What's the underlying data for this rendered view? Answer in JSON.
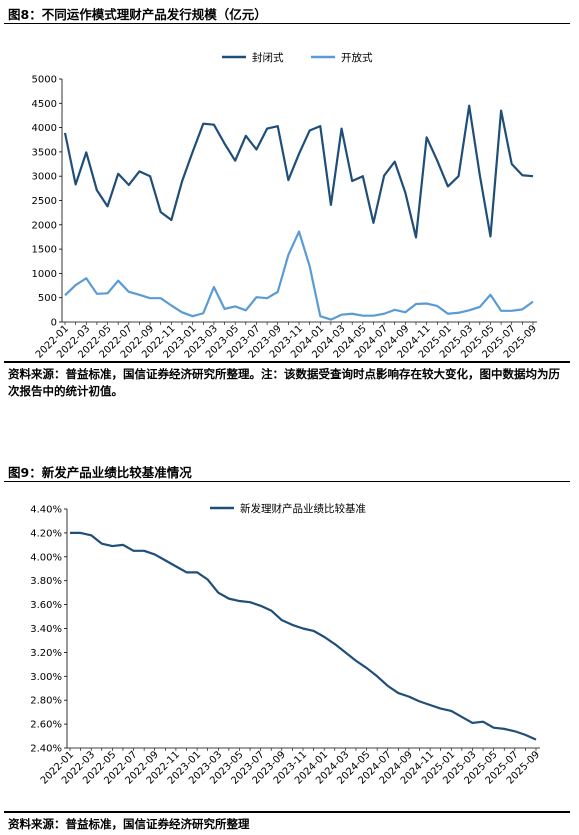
{
  "figures": [
    {
      "title": "图8：不同运作模式理财产品发行规模（亿元）",
      "source": "资料来源：普益标准，国信证券经济研究所整理。注：该数据受查询时点影响存在较大变化，图中数据均为历次报告中的统计初值。"
    },
    {
      "title": "图9：新发产品业绩比较基准情况",
      "source": "资料来源：普益标准，国信证券经济研究所整理"
    }
  ],
  "chart_data": [
    {
      "type": "line",
      "title": "",
      "xlabel": "",
      "ylabel": "",
      "ylim": [
        0,
        5000
      ],
      "yticks": [
        "0",
        "500",
        "1000",
        "1500",
        "2000",
        "2500",
        "3000",
        "3500",
        "4000",
        "4500",
        "5000"
      ],
      "x": [
        "2022-01",
        "2022-02",
        "2022-03",
        "2022-04",
        "2022-05",
        "2022-06",
        "2022-07",
        "2022-08",
        "2022-09",
        "2022-10",
        "2022-11",
        "2022-12",
        "2023-01",
        "2023-02",
        "2023-03",
        "2023-04",
        "2023-05",
        "2023-06",
        "2023-07",
        "2023-08",
        "2023-09",
        "2023-10",
        "2023-11",
        "2023-12",
        "2024-01",
        "2024-02",
        "2024-03",
        "2024-04",
        "2024-05",
        "2024-06",
        "2024-07",
        "2024-08",
        "2024-09",
        "2024-10",
        "2024-11",
        "2024-12",
        "2025-01",
        "2025-02",
        "2025-03",
        "2025-04",
        "2025-05",
        "2025-06",
        "2025-07",
        "2025-08",
        "2025-09"
      ],
      "xticks": [
        "2022-01",
        "2022-03",
        "2022-05",
        "2022-07",
        "2022-09",
        "2022-11",
        "2023-01",
        "2023-03",
        "2023-05",
        "2023-07",
        "2023-09",
        "2023-11",
        "2024-01",
        "2024-03",
        "2024-05",
        "2024-07",
        "2024-09",
        "2024-11",
        "2025-01",
        "2025-03",
        "2025-05",
        "2025-07",
        "2025-09"
      ],
      "legend_position": "top-center",
      "grid": false,
      "series": [
        {
          "name": "封闭式",
          "color": "#1f4e79",
          "values": [
            3890,
            2830,
            3490,
            2710,
            2380,
            3050,
            2820,
            3100,
            3000,
            2260,
            2100,
            2890,
            3500,
            4080,
            4060,
            3670,
            3320,
            3830,
            3550,
            3980,
            4030,
            2920,
            3460,
            3940,
            4030,
            2410,
            3980,
            2900,
            3000,
            2040,
            3010,
            3300,
            2660,
            1740,
            3800,
            3320,
            2790,
            3000,
            4450,
            3020,
            1760,
            4350,
            3250,
            3020,
            3000
          ]
        },
        {
          "name": "开放式",
          "color": "#5b9bd5",
          "values": [
            550,
            760,
            900,
            580,
            590,
            850,
            620,
            560,
            490,
            490,
            340,
            200,
            120,
            180,
            720,
            270,
            320,
            240,
            510,
            490,
            620,
            1380,
            1860,
            1150,
            120,
            50,
            150,
            170,
            130,
            130,
            170,
            250,
            200,
            370,
            380,
            330,
            170,
            190,
            240,
            310,
            560,
            230,
            230,
            260,
            420
          ]
        }
      ]
    },
    {
      "type": "line",
      "title": "",
      "xlabel": "",
      "ylabel": "",
      "ylim": [
        2.4,
        4.4
      ],
      "yticks": [
        "2.40%",
        "2.60%",
        "2.80%",
        "3.00%",
        "3.20%",
        "3.40%",
        "3.60%",
        "3.80%",
        "4.00%",
        "4.20%",
        "4.40%"
      ],
      "x": [
        "2022-01",
        "2022-02",
        "2022-03",
        "2022-04",
        "2022-05",
        "2022-06",
        "2022-07",
        "2022-08",
        "2022-09",
        "2022-10",
        "2022-11",
        "2022-12",
        "2023-01",
        "2023-02",
        "2023-03",
        "2023-04",
        "2023-05",
        "2023-06",
        "2023-07",
        "2023-08",
        "2023-09",
        "2023-10",
        "2023-11",
        "2023-12",
        "2024-01",
        "2024-02",
        "2024-03",
        "2024-04",
        "2024-05",
        "2024-06",
        "2024-07",
        "2024-08",
        "2024-09",
        "2024-10",
        "2024-11",
        "2024-12",
        "2025-01",
        "2025-02",
        "2025-03",
        "2025-04",
        "2025-05",
        "2025-06",
        "2025-07",
        "2025-08",
        "2025-09"
      ],
      "xticks": [
        "2022-01",
        "2022-03",
        "2022-05",
        "2022-07",
        "2022-09",
        "2022-11",
        "2023-01",
        "2023-03",
        "2023-05",
        "2023-07",
        "2023-09",
        "2023-11",
        "2024-01",
        "2024-03",
        "2024-05",
        "2024-07",
        "2024-09",
        "2024-11",
        "2025-01",
        "2025-03",
        "2025-05",
        "2025-07",
        "2025-09"
      ],
      "legend_position": "top-center",
      "grid": false,
      "series": [
        {
          "name": "新发理财产品业绩比较基准",
          "color": "#1f4e79",
          "values": [
            4.2,
            4.2,
            4.18,
            4.11,
            4.09,
            4.1,
            4.05,
            4.05,
            4.02,
            3.97,
            3.92,
            3.87,
            3.87,
            3.81,
            3.7,
            3.65,
            3.63,
            3.62,
            3.59,
            3.55,
            3.47,
            3.43,
            3.4,
            3.38,
            3.33,
            3.27,
            3.2,
            3.13,
            3.07,
            3.0,
            2.92,
            2.86,
            2.83,
            2.79,
            2.76,
            2.73,
            2.71,
            2.66,
            2.61,
            2.62,
            2.57,
            2.56,
            2.54,
            2.51,
            2.47
          ]
        }
      ]
    }
  ]
}
